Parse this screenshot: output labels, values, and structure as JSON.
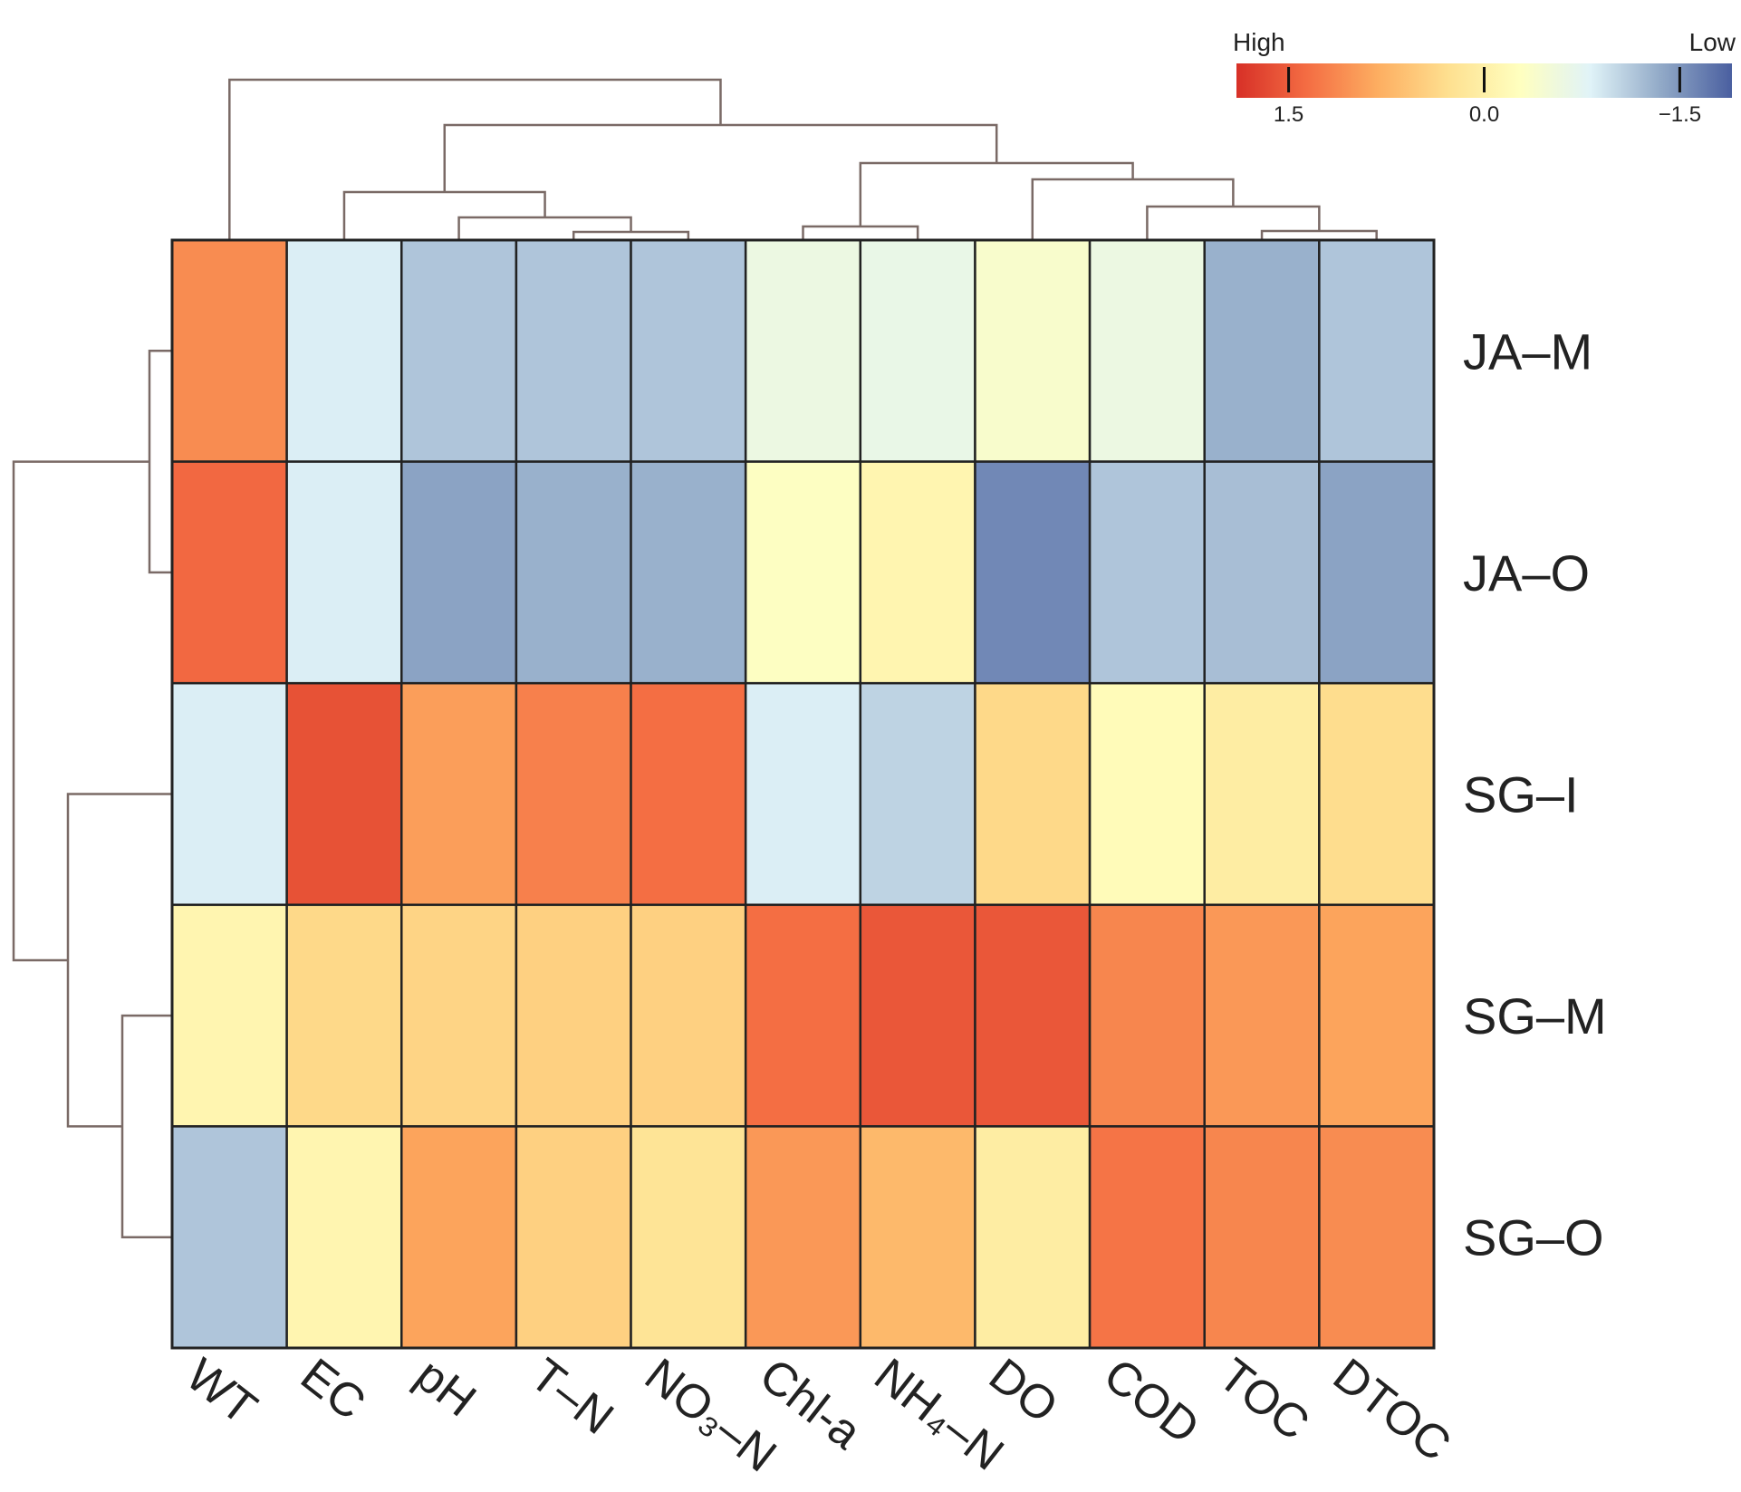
{
  "chart_data": {
    "type": "heatmap",
    "columns": [
      "WT",
      "EC",
      "pH",
      "T–N",
      "NO₃–N",
      "Chl-a",
      "NH₄–N",
      "DO",
      "COD",
      "TOC",
      "DTOC"
    ],
    "rows": [
      "JA–M",
      "JA–O",
      "SG–I",
      "SG–M",
      "SG–O"
    ],
    "values": [
      [
        1.1,
        -0.85,
        -1.15,
        -1.15,
        -1.15,
        -0.6,
        -0.65,
        -0.4,
        -0.6,
        -1.3,
        -1.15
      ],
      [
        1.4,
        -0.85,
        -1.4,
        -1.3,
        -1.3,
        -0.3,
        -0.1,
        -1.6,
        -1.15,
        -1.2,
        -1.4
      ],
      [
        -0.85,
        1.6,
        0.95,
        1.2,
        1.35,
        -0.85,
        -1.05,
        0.35,
        -0.2,
        0.05,
        0.3
      ],
      [
        -0.1,
        0.35,
        0.4,
        0.45,
        0.45,
        1.35,
        1.55,
        1.55,
        1.15,
        1.0,
        0.9
      ],
      [
        -1.15,
        -0.1,
        0.9,
        0.45,
        0.2,
        1.0,
        0.7,
        0.05,
        1.3,
        1.15,
        1.1
      ]
    ],
    "legend": {
      "high_label": "High",
      "low_label": "Low",
      "ticks": [
        {
          "value": 1.5,
          "label": "1.5"
        },
        {
          "value": 0.0,
          "label": "0.0"
        },
        {
          "value": -1.5,
          "label": "−1.5"
        }
      ],
      "range": [
        1.9,
        -1.9
      ],
      "colors": [
        "#d73027",
        "#f46d43",
        "#fdae61",
        "#fee090",
        "#ffffbf",
        "#e0f3f8",
        "#91a9c7",
        "#4a5fa0"
      ]
    },
    "col_dendrogram_order": [
      "WT",
      "EC",
      "pH",
      "T–N",
      "NO₃–N",
      "Chl-a",
      "NH₄–N",
      "DO",
      "COD",
      "TOC",
      "DTOC"
    ],
    "row_dendrogram_order": [
      "JA–M",
      "JA–O",
      "SG–I",
      "SG–M",
      "SG–O"
    ]
  }
}
